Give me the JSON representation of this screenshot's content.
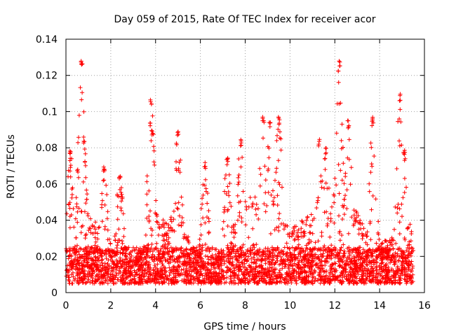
{
  "chart_data": {
    "type": "scatter",
    "title": "Day 059 of 2015, Rate Of TEC Index for receiver acor",
    "xlabel": "GPS time / hours",
    "ylabel": "ROTI / TECUs",
    "xlim": [
      0,
      16
    ],
    "ylim": [
      0,
      0.14
    ],
    "xticks": [
      0,
      2,
      4,
      6,
      8,
      10,
      12,
      14,
      16
    ],
    "yticks": [
      0,
      0.02,
      0.04,
      0.06,
      0.08,
      0.1,
      0.12,
      0.14
    ],
    "ytick_labels": [
      "0",
      "0.02",
      "0.04",
      "0.06",
      "0.08",
      "0.1",
      "0.12",
      "0.14"
    ],
    "grid": true,
    "marker": "plus",
    "color": "#ff0000",
    "series": [
      {
        "name": "ROTI",
        "x_range": [
          0,
          15.5
        ],
        "baseline_band": [
          0.005,
          0.025
        ],
        "envelope_peaks": [
          {
            "x": 0.2,
            "y": 0.079
          },
          {
            "x": 0.7,
            "y": 0.13
          },
          {
            "x": 0.8,
            "y": 0.086
          },
          {
            "x": 1.7,
            "y": 0.071
          },
          {
            "x": 2.4,
            "y": 0.067
          },
          {
            "x": 3.8,
            "y": 0.108
          },
          {
            "x": 3.85,
            "y": 0.091
          },
          {
            "x": 5.0,
            "y": 0.09
          },
          {
            "x": 6.2,
            "y": 0.072
          },
          {
            "x": 7.2,
            "y": 0.075
          },
          {
            "x": 7.8,
            "y": 0.085
          },
          {
            "x": 8.8,
            "y": 0.098
          },
          {
            "x": 9.1,
            "y": 0.095
          },
          {
            "x": 9.5,
            "y": 0.097
          },
          {
            "x": 11.3,
            "y": 0.085
          },
          {
            "x": 11.6,
            "y": 0.08
          },
          {
            "x": 12.2,
            "y": 0.128
          },
          {
            "x": 12.6,
            "y": 0.095
          },
          {
            "x": 13.7,
            "y": 0.098
          },
          {
            "x": 14.9,
            "y": 0.11
          },
          {
            "x": 15.1,
            "y": 0.08
          }
        ]
      }
    ]
  }
}
